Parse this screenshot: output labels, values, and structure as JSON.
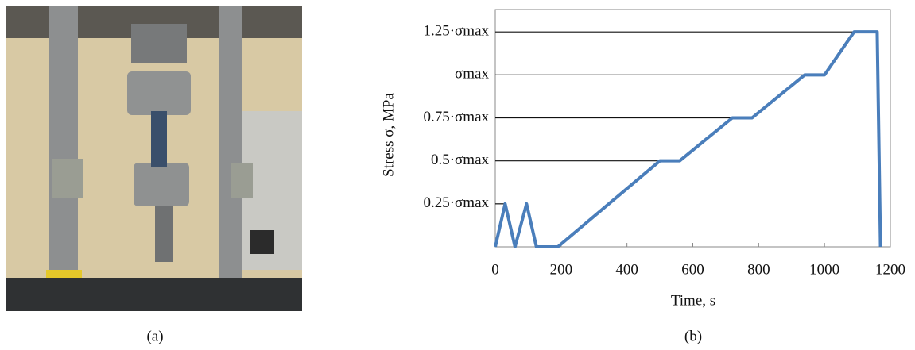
{
  "panel_labels": [
    "(a)",
    "(b)"
  ],
  "chart_data": {
    "type": "line",
    "x_label": "Time, s",
    "y_label": "Stress σ, MPa",
    "x": [
      0,
      30,
      60,
      95,
      125,
      190,
      500,
      560,
      720,
      780,
      940,
      1000,
      1090,
      1160,
      1170
    ],
    "series": [
      {
        "color": "#4a7ebb",
        "values": [
          0,
          0.25,
          0,
          0.25,
          0,
          0,
          0.5,
          0.5,
          0.75,
          0.75,
          1,
          1,
          1.25,
          1.25,
          0
        ]
      }
    ],
    "xlim": [
      0,
      1200
    ],
    "xticks": [
      0,
      200,
      400,
      600,
      800,
      1000,
      1200
    ],
    "ylim": [
      0,
      1.38
    ],
    "yticks": [
      {
        "value": 0.25,
        "label": "0.25·σmax"
      },
      {
        "value": 0.5,
        "label": "0.5·σmax"
      },
      {
        "value": 0.75,
        "label": "0.75·σmax"
      },
      {
        "value": 1,
        "label": "σmax"
      },
      {
        "value": 1.25,
        "label": "1.25·σmax"
      }
    ]
  }
}
